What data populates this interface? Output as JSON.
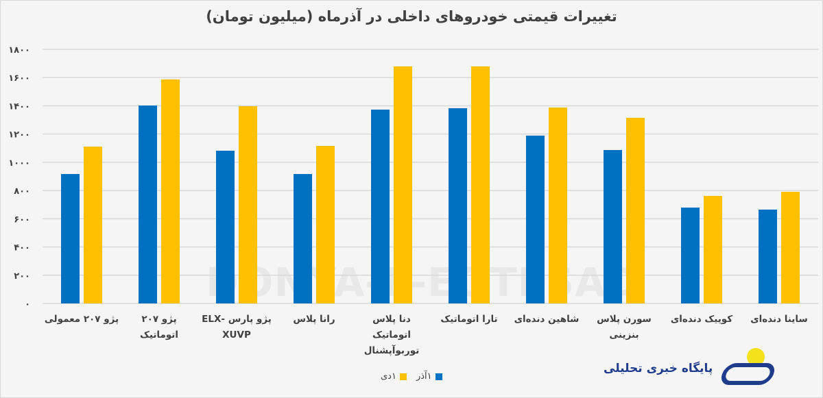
{
  "chart_data": {
    "type": "bar",
    "title": "تغییرات قیمتی خودروهای داخلی در آذرماه (میلیون تومان)",
    "xlabel": "",
    "ylabel": "",
    "ylim": [
      0,
      1800
    ],
    "yticks": [
      0,
      200,
      400,
      600,
      800,
      1000,
      1200,
      1400,
      1600,
      1800
    ],
    "ytick_labels": [
      "۰",
      "۲۰۰",
      "۴۰۰",
      "۶۰۰",
      "۸۰۰",
      "۱۰۰۰",
      "۱۲۰۰",
      "۱۴۰۰",
      "۱۶۰۰",
      "۱۸۰۰"
    ],
    "grid": true,
    "legend_position": "bottom",
    "categories": [
      "پژو ۲۰۷ معمولی",
      "پژو ۲۰۷ اتوماتیک",
      "پژو پارس -ELX XUVP",
      "رانا پلاس",
      "دنا پلاس اتوماتیک توربوآپشنال",
      "تارا اتوماتیک",
      "شاهین دنده‌ای",
      "سورن پلاس بنزینی",
      "کوییک دنده‌ای",
      "ساینا دنده‌ای"
    ],
    "series": [
      {
        "name": "۱آذر",
        "color": "#0070c0",
        "values": [
          917,
          1402,
          1082,
          917,
          1373,
          1383,
          1189,
          1087,
          679,
          665
        ]
      },
      {
        "name": "۱دی",
        "color": "#ffc000",
        "values": [
          1111,
          1587,
          1397,
          1116,
          1679,
          1679,
          1388,
          1315,
          762,
          791
        ]
      }
    ]
  },
  "watermark": "DONYA-E-EQTESAD",
  "logo": {
    "text": "پایگاه خبری تحلیلی"
  }
}
